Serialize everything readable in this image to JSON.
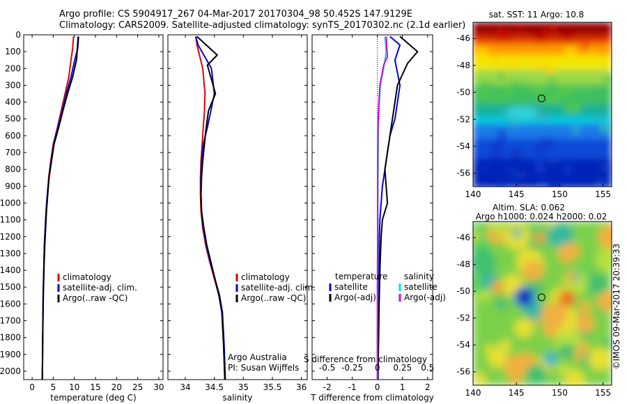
{
  "header": {
    "line1": "Argo profile: CS 5904917_267 04-Mar-2017 20170304_98 50.452S 147.9129E",
    "line2": "Climatology: CARS2009. Satellite-adjusted climatology: synTS_20170302.nc (2.1d earlier)"
  },
  "colors": {
    "climatology": "#e00000",
    "satellite_adj": "#0000e0",
    "argo": "#000000",
    "t_satellite": "#0000e0",
    "t_argo": "#000000",
    "s_satellite": "#00e0e0",
    "s_argo": "#e000e0"
  },
  "credits": {
    "org": "Argo Australia",
    "pi": "PI: Susan Wijffels",
    "imos": "©IMOS 09-Mar-2017 20:39:33"
  },
  "chart_data": [
    {
      "type": "line",
      "name": "temperature",
      "xlabel": "temperature (deg C)",
      "xlim": [
        -2,
        31
      ],
      "xticks": [
        0,
        5,
        10,
        15,
        20,
        25,
        30
      ],
      "ylim": [
        0,
        2050
      ],
      "yticks": [
        0,
        100,
        200,
        300,
        400,
        500,
        600,
        700,
        800,
        900,
        1000,
        1100,
        1200,
        1300,
        1400,
        1500,
        1600,
        1700,
        1800,
        1900,
        2000
      ],
      "legend": [
        "climatology",
        "satellite-adj. clim.",
        "Argo(..raw -QC)"
      ],
      "series": [
        {
          "name": "climatology",
          "color_key": "climatology",
          "x": [
            9.8,
            9.6,
            9.2,
            8.7,
            7.8,
            6.9,
            6.0,
            5.0,
            4.4,
            3.9,
            3.6,
            3.3,
            3.1,
            2.9,
            2.8,
            2.7,
            2.6,
            2.55,
            2.5,
            2.45,
            2.4
          ],
          "y": [
            10,
            80,
            150,
            250,
            350,
            450,
            550,
            650,
            750,
            850,
            950,
            1050,
            1150,
            1250,
            1350,
            1450,
            1550,
            1650,
            1800,
            1950,
            2050
          ]
        },
        {
          "name": "satellite-adj. clim.",
          "color_key": "satellite_adj",
          "x": [
            11.0,
            10.8,
            10.1,
            9.2,
            8.1,
            7.1,
            6.1,
            5.1,
            4.5,
            4.0,
            3.6,
            3.3,
            3.1,
            2.9,
            2.8,
            2.7,
            2.6,
            2.55,
            2.5,
            2.45,
            2.4
          ],
          "y": [
            10,
            80,
            150,
            250,
            350,
            450,
            550,
            650,
            750,
            850,
            950,
            1050,
            1150,
            1250,
            1350,
            1450,
            1550,
            1650,
            1800,
            1950,
            2050
          ]
        },
        {
          "name": "Argo(..raw -QC)",
          "color_key": "argo",
          "x": [
            10.9,
            10.7,
            10.5,
            9.6,
            8.4,
            7.3,
            6.3,
            5.2,
            4.6,
            4.0,
            3.7,
            3.4,
            3.2,
            3.0,
            2.85,
            2.75,
            2.65,
            2.6,
            2.5,
            2.45,
            2.4
          ],
          "y": [
            10,
            80,
            150,
            250,
            350,
            450,
            550,
            650,
            750,
            850,
            950,
            1050,
            1150,
            1250,
            1350,
            1450,
            1550,
            1650,
            1800,
            1950,
            2050
          ]
        }
      ]
    },
    {
      "type": "line",
      "name": "salinity",
      "xlabel": "salinity",
      "xlim": [
        33.7,
        36.1
      ],
      "xticks": [
        34,
        34.5,
        35,
        35.5,
        36
      ],
      "ylim": [
        0,
        2050
      ],
      "legend": [
        "climatology",
        "satellite-adj. clim.",
        "Argo(..raw -QC)"
      ],
      "credit_lines": [
        "Argo Australia",
        "PI: Susan Wijffels"
      ],
      "series": [
        {
          "name": "climatology",
          "color_key": "climatology",
          "x": [
            34.18,
            34.2,
            34.3,
            34.34,
            34.33,
            34.31,
            34.29,
            34.27,
            34.26,
            34.26,
            34.27,
            34.3,
            34.35,
            34.42,
            34.5,
            34.58,
            34.63,
            34.66,
            34.68
          ],
          "y": [
            10,
            60,
            200,
            350,
            450,
            550,
            650,
            750,
            850,
            950,
            1050,
            1150,
            1250,
            1350,
            1450,
            1550,
            1650,
            1850,
            2050
          ]
        },
        {
          "name": "satellite-adj. clim.",
          "color_key": "satellite_adj",
          "x": [
            34.18,
            34.22,
            34.45,
            34.5,
            34.44,
            34.38,
            34.31,
            34.28,
            34.27,
            34.27,
            34.28,
            34.31,
            34.36,
            34.43,
            34.51,
            34.59,
            34.64,
            34.67,
            34.69
          ],
          "y": [
            10,
            60,
            200,
            350,
            450,
            550,
            650,
            750,
            850,
            950,
            1050,
            1150,
            1250,
            1350,
            1450,
            1550,
            1650,
            1850,
            2050
          ]
        },
        {
          "name": "Argo(..raw -QC)",
          "color_key": "argo",
          "x": [
            34.2,
            34.55,
            34.38,
            34.52,
            34.4,
            34.36,
            34.33,
            34.3,
            34.28,
            34.27,
            34.28,
            34.32,
            34.37,
            34.44,
            34.51,
            34.58,
            34.63,
            34.66,
            34.68
          ],
          "y": [
            10,
            120,
            180,
            350,
            450,
            550,
            650,
            750,
            850,
            950,
            1050,
            1150,
            1250,
            1350,
            1450,
            1550,
            1650,
            1850,
            2050
          ]
        }
      ]
    },
    {
      "type": "line",
      "name": "difference",
      "xlabel": "T difference from climatology",
      "x2label": "S difference from climatology",
      "xlim": [
        -2.6,
        2.2
      ],
      "xticks": [
        -2,
        -1,
        0,
        1,
        2
      ],
      "x2ticks": [
        "-0.5",
        "-0.25",
        "0",
        "0.25",
        "0.5"
      ],
      "ylim": [
        0,
        2050
      ],
      "legend_temperature": {
        "title": "temperature",
        "items": [
          "satellite",
          "Argo(-adj)"
        ]
      },
      "legend_salinity": {
        "title": "salinity",
        "items": [
          "satellite",
          "Argo(-adj)"
        ]
      },
      "series": [
        {
          "name": "satellite",
          "group": "temperature",
          "color_key": "t_satellite",
          "x": [
            0.5,
            0.9,
            0.7,
            0.9,
            0.8,
            0.7,
            0.5,
            0.4,
            0.3,
            0.2,
            0.15,
            0.1,
            0.08,
            0.06,
            0.05,
            0.04,
            0.03,
            0.03
          ],
          "y": [
            10,
            60,
            150,
            300,
            400,
            500,
            600,
            700,
            800,
            900,
            1000,
            1100,
            1200,
            1400,
            1600,
            1800,
            1950,
            2050
          ]
        },
        {
          "name": "Argo(-adj)",
          "group": "temperature",
          "color_key": "t_argo",
          "x": [
            0.9,
            1.6,
            1.2,
            0.8,
            0.7,
            0.6,
            0.5,
            0.4,
            0.3,
            0.35,
            0.4,
            0.2,
            0.15,
            0.1,
            0.07,
            0.05,
            0.03,
            0.02
          ],
          "y": [
            10,
            100,
            170,
            300,
            400,
            500,
            600,
            700,
            800,
            900,
            1000,
            1100,
            1200,
            1400,
            1600,
            1800,
            1950,
            2050
          ]
        },
        {
          "name": "satellite",
          "group": "salinity",
          "color_key": "s_satellite",
          "x": [
            0.3,
            0.35,
            0.25,
            0.12,
            0.08,
            0.05,
            0.04,
            0.03,
            0.02,
            0.02,
            0.01,
            0.0,
            0.0
          ],
          "y": [
            10,
            100,
            200,
            300,
            400,
            500,
            600,
            800,
            1000,
            1200,
            1500,
            1800,
            2050
          ]
        },
        {
          "name": "Argo(-adj)",
          "group": "salinity",
          "color_key": "s_argo",
          "x": [
            0.35,
            0.4,
            0.25,
            0.1,
            0.06,
            0.03,
            0.02,
            0.01,
            0.01,
            0.01,
            0.0,
            0.0,
            0.0
          ],
          "y": [
            10,
            130,
            180,
            300,
            400,
            500,
            600,
            800,
            1000,
            1200,
            1500,
            1800,
            2050
          ]
        }
      ]
    },
    {
      "type": "heatmap",
      "name": "sst_map",
      "title": "sat. SST: 11 Argo: 10.8",
      "xlim": [
        140,
        156
      ],
      "ylim": [
        -57,
        -44.8
      ],
      "xticks": [
        140,
        145,
        150,
        155
      ],
      "yticks": [
        -46,
        -48,
        -50,
        -52,
        -54,
        -56
      ],
      "marker": {
        "lon": 147.91,
        "lat": -50.45
      }
    },
    {
      "type": "heatmap",
      "name": "sla_map",
      "title": "Altim. SLA: 0.062",
      "subtitle": "Argo h1000: 0.024 h2000: 0.02",
      "xlim": [
        140,
        156
      ],
      "ylim": [
        -57,
        -44.8
      ],
      "xticks": [
        140,
        145,
        150,
        155
      ],
      "yticks": [
        -46,
        -48,
        -50,
        -52,
        -54,
        -56
      ],
      "marker": {
        "lon": 147.91,
        "lat": -50.45
      }
    }
  ]
}
